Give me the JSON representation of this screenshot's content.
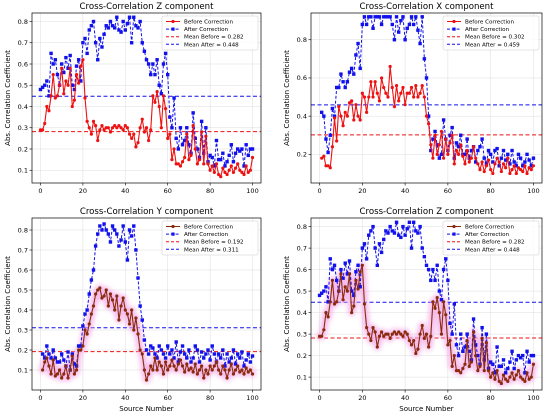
{
  "chart_data": [
    {
      "type": "line",
      "title": "Cross-Correlation  Z component",
      "xlabel": "",
      "ylabel": "Abs. Correlation Coefficient",
      "xlim": [
        -4,
        104
      ],
      "ylim": [
        0.04,
        0.84
      ],
      "xticks": [
        0,
        20,
        40,
        60,
        80,
        100
      ],
      "yticks": [
        0.1,
        0.2,
        0.3,
        0.4,
        0.5,
        0.6,
        0.7,
        0.8
      ],
      "grid": true,
      "legend_position": "upper-right",
      "style": "plain",
      "x_start": 0,
      "series": [
        {
          "name": "Before Correction",
          "color": "#ee1111",
          "marker": "circle",
          "linestyle": "solid",
          "values": [
            0.29,
            0.29,
            0.32,
            0.4,
            0.38,
            0.45,
            0.55,
            0.44,
            0.45,
            0.5,
            0.58,
            0.46,
            0.52,
            0.5,
            0.58,
            0.4,
            0.43,
            0.55,
            0.51,
            0.59,
            0.62,
            0.44,
            0.33,
            0.3,
            0.27,
            0.33,
            0.31,
            0.24,
            0.29,
            0.31,
            0.29,
            0.3,
            0.3,
            0.28,
            0.3,
            0.31,
            0.3,
            0.31,
            0.3,
            0.29,
            0.31,
            0.3,
            0.27,
            0.25,
            0.27,
            0.21,
            0.23,
            0.3,
            0.34,
            0.28,
            0.3,
            0.24,
            0.29,
            0.45,
            0.42,
            0.47,
            0.4,
            0.3,
            0.45,
            0.39,
            0.25,
            0.27,
            0.15,
            0.2,
            0.13,
            0.13,
            0.12,
            0.14,
            0.16,
            0.27,
            0.15,
            0.17,
            0.31,
            0.2,
            0.13,
            0.15,
            0.28,
            0.13,
            0.26,
            0.13,
            0.1,
            0.12,
            0.09,
            0.13,
            0.08,
            0.07,
            0.11,
            0.09,
            0.08,
            0.1,
            0.12,
            0.09,
            0.11,
            0.13,
            0.1,
            0.09,
            0.08,
            0.12,
            0.09,
            0.1,
            0.16
          ]
        },
        {
          "name": "After Correction",
          "color": "#1111ee",
          "marker": "square",
          "linestyle": "dashed",
          "values": [
            0.48,
            0.49,
            0.5,
            0.52,
            0.45,
            0.65,
            0.6,
            0.62,
            0.55,
            0.5,
            0.6,
            0.56,
            0.63,
            0.58,
            0.64,
            0.5,
            0.48,
            0.59,
            0.62,
            0.52,
            0.7,
            0.72,
            0.65,
            0.76,
            0.78,
            0.8,
            0.7,
            0.62,
            0.72,
            0.68,
            0.74,
            0.78,
            0.77,
            0.8,
            0.78,
            0.77,
            0.82,
            0.76,
            0.75,
            0.8,
            0.76,
            0.79,
            0.82,
            0.7,
            0.82,
            0.78,
            0.77,
            0.8,
            0.7,
            0.66,
            0.62,
            0.6,
            0.55,
            0.6,
            0.55,
            0.62,
            0.5,
            0.46,
            0.6,
            0.65,
            0.55,
            0.35,
            0.3,
            0.44,
            0.25,
            0.2,
            0.3,
            0.22,
            0.24,
            0.3,
            0.22,
            0.18,
            0.37,
            0.25,
            0.2,
            0.16,
            0.33,
            0.18,
            0.3,
            0.14,
            0.17,
            0.16,
            0.12,
            0.24,
            0.15,
            0.15,
            0.18,
            0.12,
            0.14,
            0.17,
            0.22,
            0.14,
            0.18,
            0.2,
            0.19,
            0.2,
            0.12,
            0.22,
            0.17,
            0.2,
            0.2
          ]
        }
      ],
      "hlines": [
        {
          "name": "Mean Before = 0.282",
          "value": 0.282,
          "color": "#ee1111"
        },
        {
          "name": "Mean After = 0.448",
          "value": 0.448,
          "color": "#1111ee"
        }
      ]
    },
    {
      "type": "line",
      "title": "Cross-Correlation  X component",
      "xlabel": "",
      "ylabel": "Abs. Correlation Coefficient",
      "xlim": [
        -4,
        104
      ],
      "ylim": [
        0.05,
        0.94
      ],
      "xticks": [
        0,
        20,
        40,
        60,
        80,
        100
      ],
      "yticks": [
        0.2,
        0.4,
        0.6,
        0.8
      ],
      "grid": true,
      "legend_position": "upper-right",
      "style": "plain",
      "x_start": 1,
      "series": [
        {
          "name": "Before Correction",
          "color": "#ee1111",
          "marker": "circle",
          "linestyle": "solid",
          "values": [
            0.18,
            0.19,
            0.14,
            0.14,
            0.13,
            0.24,
            0.39,
            0.27,
            0.45,
            0.4,
            0.35,
            0.42,
            0.4,
            0.47,
            0.48,
            0.38,
            0.46,
            0.4,
            0.38,
            0.52,
            0.5,
            0.42,
            0.5,
            0.58,
            0.5,
            0.58,
            0.52,
            0.48,
            0.6,
            0.55,
            0.52,
            0.5,
            0.66,
            0.55,
            0.45,
            0.56,
            0.48,
            0.52,
            0.55,
            0.46,
            0.52,
            0.52,
            0.55,
            0.5,
            0.56,
            0.5,
            0.52,
            0.56,
            0.5,
            0.4,
            0.36,
            0.25,
            0.18,
            0.3,
            0.2,
            0.25,
            0.32,
            0.18,
            0.28,
            0.2,
            0.26,
            0.3,
            0.15,
            0.22,
            0.2,
            0.25,
            0.19,
            0.15,
            0.22,
            0.16,
            0.18,
            0.24,
            0.18,
            0.15,
            0.12,
            0.16,
            0.11,
            0.14,
            0.17,
            0.12,
            0.1,
            0.15,
            0.18,
            0.16,
            0.11,
            0.15,
            0.13,
            0.18,
            0.1,
            0.12,
            0.14,
            0.1,
            0.13,
            0.12,
            0.11,
            0.14,
            0.1,
            0.13,
            0.12,
            0.14
          ]
        },
        {
          "name": "After Correction",
          "color": "#1111ee",
          "marker": "square",
          "linestyle": "dashed",
          "values": [
            0.42,
            0.4,
            0.28,
            0.21,
            0.3,
            0.44,
            0.4,
            0.55,
            0.55,
            0.62,
            0.58,
            0.55,
            0.58,
            0.63,
            0.65,
            0.62,
            0.72,
            0.78,
            0.65,
            0.88,
            0.92,
            0.88,
            0.92,
            0.92,
            0.86,
            0.92,
            0.92,
            0.92,
            0.88,
            0.92,
            0.92,
            0.92,
            0.92,
            0.88,
            0.8,
            0.92,
            0.84,
            0.9,
            0.92,
            0.8,
            0.86,
            0.88,
            0.92,
            0.88,
            0.92,
            0.85,
            0.78,
            0.92,
            0.7,
            0.6,
            0.4,
            0.22,
            0.28,
            0.32,
            0.25,
            0.18,
            0.2,
            0.38,
            0.28,
            0.22,
            0.3,
            0.34,
            0.18,
            0.26,
            0.24,
            0.3,
            0.2,
            0.2,
            0.28,
            0.18,
            0.22,
            0.24,
            0.16,
            0.22,
            0.24,
            0.28,
            0.18,
            0.15,
            0.22,
            0.2,
            0.16,
            0.22,
            0.23,
            0.14,
            0.18,
            0.22,
            0.17,
            0.2,
            0.15,
            0.22,
            0.16,
            0.14,
            0.2,
            0.18,
            0.14,
            0.16,
            0.2,
            0.17,
            0.14,
            0.18
          ]
        }
      ],
      "hlines": [
        {
          "name": "Mean Before = 0.302",
          "value": 0.302,
          "color": "#ee1111"
        },
        {
          "name": "Mean After = 0.459",
          "value": 0.459,
          "color": "#1111ee"
        }
      ]
    },
    {
      "type": "line",
      "title": "Cross-Correlation  Y component",
      "xlabel": "Source Number",
      "ylabel": "Abs. Correlation Coefficient",
      "xlim": [
        -4,
        104
      ],
      "ylim": [
        0.0,
        0.86
      ],
      "xticks": [
        0,
        20,
        40,
        60,
        80,
        100
      ],
      "yticks": [
        0.1,
        0.2,
        0.3,
        0.4,
        0.5,
        0.6,
        0.7,
        0.8
      ],
      "grid": true,
      "legend_position": "upper-right",
      "style": "glow",
      "x_start": 1,
      "series": [
        {
          "name": "Before Correction",
          "color": "#8b2a0c",
          "marker": "circle",
          "linestyle": "solid",
          "values": [
            0.1,
            0.14,
            0.16,
            0.12,
            0.08,
            0.15,
            0.07,
            0.08,
            0.1,
            0.06,
            0.08,
            0.12,
            0.06,
            0.1,
            0.17,
            0.08,
            0.1,
            0.2,
            0.2,
            0.22,
            0.3,
            0.28,
            0.33,
            0.38,
            0.42,
            0.48,
            0.5,
            0.51,
            0.46,
            0.47,
            0.5,
            0.42,
            0.48,
            0.45,
            0.4,
            0.47,
            0.35,
            0.42,
            0.46,
            0.4,
            0.38,
            0.33,
            0.4,
            0.3,
            0.36,
            0.28,
            0.2,
            0.18,
            0.1,
            0.05,
            0.08,
            0.12,
            0.1,
            0.16,
            0.1,
            0.14,
            0.12,
            0.08,
            0.14,
            0.1,
            0.12,
            0.15,
            0.12,
            0.1,
            0.13,
            0.15,
            0.12,
            0.09,
            0.13,
            0.1,
            0.11,
            0.09,
            0.13,
            0.08,
            0.1,
            0.12,
            0.06,
            0.1,
            0.08,
            0.12,
            0.1,
            0.12,
            0.14,
            0.1,
            0.08,
            0.12,
            0.1,
            0.06,
            0.1,
            0.13,
            0.08,
            0.1,
            0.12,
            0.09,
            0.1,
            0.08,
            0.11,
            0.09,
            0.1,
            0.08
          ]
        },
        {
          "name": "After Correction",
          "color": "#1111ee",
          "marker": "square",
          "linestyle": "dashed",
          "values": [
            0.18,
            0.16,
            0.22,
            0.18,
            0.16,
            0.2,
            0.16,
            0.14,
            0.14,
            0.18,
            0.15,
            0.12,
            0.19,
            0.1,
            0.18,
            0.13,
            0.12,
            0.22,
            0.22,
            0.32,
            0.38,
            0.4,
            0.48,
            0.55,
            0.6,
            0.72,
            0.78,
            0.82,
            0.8,
            0.83,
            0.8,
            0.78,
            0.74,
            0.82,
            0.8,
            0.78,
            0.72,
            0.75,
            0.82,
            0.74,
            0.65,
            0.8,
            0.77,
            0.82,
            0.7,
            0.56,
            0.42,
            0.35,
            0.25,
            0.2,
            0.18,
            0.22,
            0.21,
            0.18,
            0.16,
            0.22,
            0.2,
            0.18,
            0.16,
            0.22,
            0.18,
            0.2,
            0.16,
            0.24,
            0.14,
            0.19,
            0.22,
            0.18,
            0.16,
            0.2,
            0.14,
            0.16,
            0.22,
            0.2,
            0.14,
            0.19,
            0.16,
            0.18,
            0.2,
            0.15,
            0.22,
            0.18,
            0.14,
            0.18,
            0.16,
            0.2,
            0.12,
            0.18,
            0.14,
            0.16,
            0.2,
            0.13,
            0.18,
            0.16,
            0.19,
            0.12,
            0.15,
            0.18,
            0.14,
            0.17
          ]
        }
      ],
      "hlines": [
        {
          "name": "Mean Before = 0.192",
          "value": 0.192,
          "color": "#ee1111"
        },
        {
          "name": "Mean After = 0.311",
          "value": 0.311,
          "color": "#1111ee"
        }
      ]
    },
    {
      "type": "line",
      "title": "Cross-Correlation  Z component",
      "xlabel": "Source Number",
      "ylabel": "Abs. Correlation Coefficient",
      "xlim": [
        -4,
        104
      ],
      "ylim": [
        0.04,
        0.84
      ],
      "xticks": [
        0,
        20,
        40,
        60,
        80,
        100
      ],
      "yticks": [
        0.1,
        0.2,
        0.3,
        0.4,
        0.5,
        0.6,
        0.7,
        0.8
      ],
      "grid": true,
      "legend_position": "upper-right",
      "style": "glow",
      "x_start": 0,
      "series": [
        {
          "name": "Before Correction",
          "color": "#8b2a0c",
          "marker": "circle",
          "linestyle": "solid",
          "values": [
            0.29,
            0.29,
            0.32,
            0.4,
            0.38,
            0.45,
            0.55,
            0.44,
            0.45,
            0.5,
            0.58,
            0.46,
            0.52,
            0.5,
            0.58,
            0.4,
            0.43,
            0.55,
            0.51,
            0.59,
            0.62,
            0.44,
            0.33,
            0.3,
            0.27,
            0.33,
            0.31,
            0.24,
            0.29,
            0.31,
            0.29,
            0.3,
            0.3,
            0.28,
            0.3,
            0.31,
            0.3,
            0.31,
            0.3,
            0.29,
            0.31,
            0.3,
            0.27,
            0.25,
            0.27,
            0.21,
            0.23,
            0.3,
            0.34,
            0.28,
            0.3,
            0.24,
            0.29,
            0.45,
            0.42,
            0.47,
            0.4,
            0.3,
            0.45,
            0.39,
            0.25,
            0.27,
            0.15,
            0.2,
            0.13,
            0.13,
            0.12,
            0.14,
            0.16,
            0.27,
            0.15,
            0.17,
            0.31,
            0.2,
            0.13,
            0.15,
            0.28,
            0.13,
            0.26,
            0.13,
            0.1,
            0.12,
            0.09,
            0.13,
            0.08,
            0.07,
            0.11,
            0.09,
            0.08,
            0.1,
            0.12,
            0.09,
            0.11,
            0.13,
            0.1,
            0.09,
            0.08,
            0.12,
            0.09,
            0.1,
            0.16
          ]
        },
        {
          "name": "After Correction",
          "color": "#1111ee",
          "marker": "square",
          "linestyle": "dashed",
          "values": [
            0.48,
            0.49,
            0.5,
            0.52,
            0.45,
            0.65,
            0.6,
            0.62,
            0.55,
            0.5,
            0.6,
            0.56,
            0.63,
            0.58,
            0.64,
            0.5,
            0.48,
            0.59,
            0.62,
            0.52,
            0.7,
            0.72,
            0.65,
            0.76,
            0.78,
            0.8,
            0.7,
            0.62,
            0.72,
            0.68,
            0.74,
            0.78,
            0.77,
            0.8,
            0.78,
            0.77,
            0.82,
            0.76,
            0.75,
            0.8,
            0.76,
            0.79,
            0.82,
            0.7,
            0.82,
            0.78,
            0.77,
            0.8,
            0.7,
            0.66,
            0.62,
            0.6,
            0.55,
            0.6,
            0.55,
            0.62,
            0.5,
            0.46,
            0.6,
            0.65,
            0.55,
            0.35,
            0.3,
            0.44,
            0.25,
            0.2,
            0.3,
            0.22,
            0.24,
            0.3,
            0.22,
            0.18,
            0.37,
            0.25,
            0.2,
            0.16,
            0.33,
            0.18,
            0.3,
            0.14,
            0.17,
            0.16,
            0.12,
            0.24,
            0.15,
            0.15,
            0.18,
            0.12,
            0.14,
            0.17,
            0.22,
            0.14,
            0.18,
            0.2,
            0.19,
            0.2,
            0.12,
            0.22,
            0.17,
            0.2,
            0.2
          ]
        }
      ],
      "hlines": [
        {
          "name": "Mean Before = 0.282",
          "value": 0.282,
          "color": "#ee1111"
        },
        {
          "name": "Mean After = 0.448",
          "value": 0.448,
          "color": "#1111ee"
        }
      ]
    }
  ]
}
